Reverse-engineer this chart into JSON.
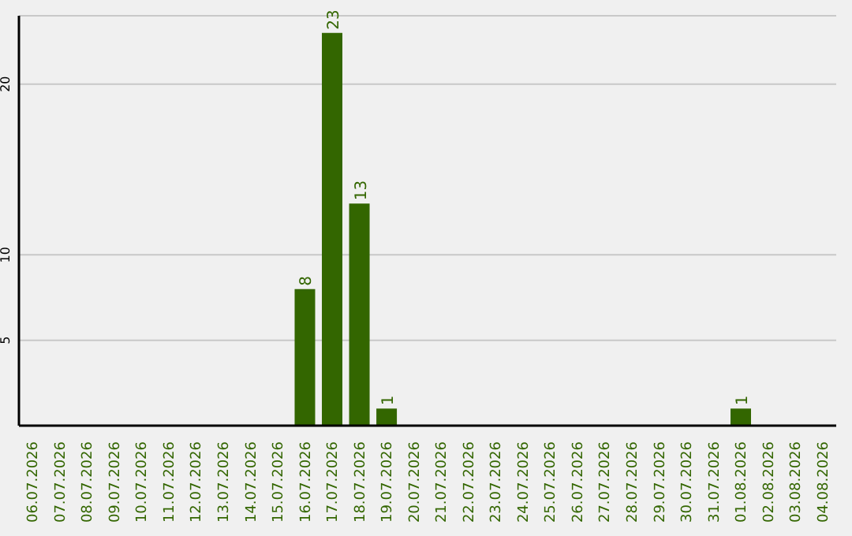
{
  "chart_data": {
    "type": "bar",
    "categories": [
      "06.07.2026",
      "07.07.2026",
      "08.07.2026",
      "09.07.2026",
      "10.07.2026",
      "11.07.2026",
      "12.07.2026",
      "13.07.2026",
      "14.07.2026",
      "15.07.2026",
      "16.07.2026",
      "17.07.2026",
      "18.07.2026",
      "19.07.2026",
      "20.07.2026",
      "21.07.2026",
      "22.07.2026",
      "23.07.2026",
      "24.07.2026",
      "25.07.2026",
      "26.07.2026",
      "27.07.2026",
      "28.07.2026",
      "29.07.2026",
      "30.07.2026",
      "31.07.2026",
      "01.08.2026",
      "02.08.2026",
      "03.08.2026",
      "04.08.2026"
    ],
    "values": [
      0,
      0,
      0,
      0,
      0,
      0,
      0,
      0,
      0,
      0,
      8,
      23,
      13,
      1,
      0,
      0,
      0,
      0,
      0,
      0,
      0,
      0,
      0,
      0,
      0,
      0,
      1,
      0,
      0,
      0
    ],
    "value_labels": [
      null,
      null,
      null,
      null,
      null,
      null,
      null,
      null,
      null,
      null,
      "8",
      "23",
      "13",
      "1",
      null,
      null,
      null,
      null,
      null,
      null,
      null,
      null,
      null,
      null,
      null,
      null,
      "1",
      null,
      null,
      null
    ],
    "color": "#336600",
    "ylim": [
      0,
      24
    ],
    "yticks": [
      5,
      10,
      20
    ],
    "grid": "y"
  }
}
